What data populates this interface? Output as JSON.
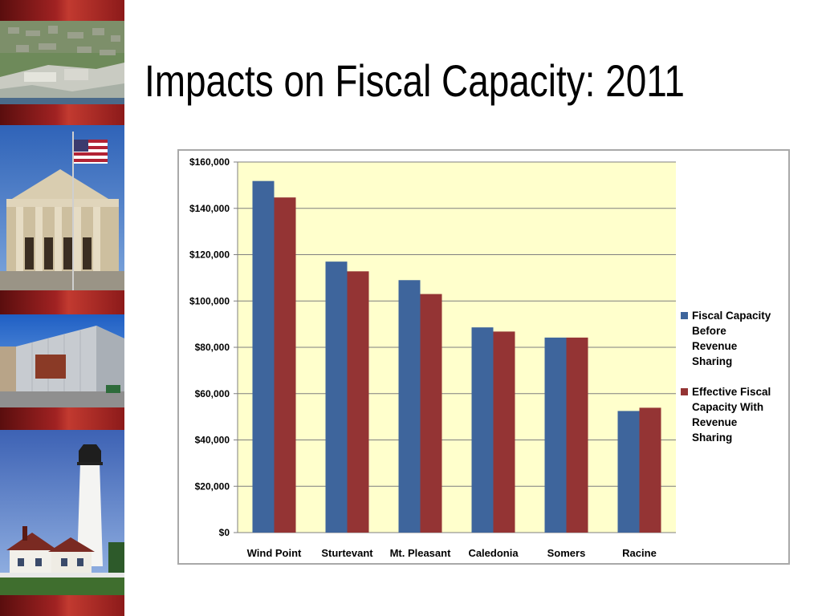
{
  "slide": {
    "title": "Impacts on Fiscal Capacity:  2011"
  },
  "sidebar": {
    "photos": [
      "aerial-city-photo",
      "civic-building-with-flag-photo",
      "modern-building-photo",
      "lighthouse-photo"
    ]
  },
  "colors": {
    "series_before": "#3e659c",
    "series_after": "#943434",
    "plot_background": "#ffffcc",
    "sidebar_band": "#8c1a1a"
  },
  "chart_data": {
    "type": "bar",
    "categories": [
      "Wind Point",
      "Sturtevant",
      "Mt. Pleasant",
      "Caledonia",
      "Somers",
      "Racine"
    ],
    "series": [
      {
        "name": "Fiscal Capacity Before Revenue Sharing",
        "legend_lines": [
          "Fiscal Capacity",
          "Before",
          "Revenue",
          "Sharing"
        ],
        "values": [
          151800,
          117000,
          109000,
          88600,
          84200,
          52500
        ]
      },
      {
        "name": "Effective Fiscal Capacity With Revenue Sharing",
        "legend_lines": [
          "Effective Fiscal",
          "Capacity With",
          "Revenue",
          "Sharing"
        ],
        "values": [
          144700,
          112800,
          103000,
          86800,
          84200,
          53900
        ]
      }
    ],
    "ylim": [
      0,
      160000
    ],
    "y_ticks": [
      "$0",
      "$20,000",
      "$40,000",
      "$60,000",
      "$80,000",
      "$100,000",
      "$120,000",
      "$140,000",
      "$160,000"
    ],
    "grid": true,
    "legend_position": "right",
    "xlabel": "",
    "ylabel": ""
  }
}
